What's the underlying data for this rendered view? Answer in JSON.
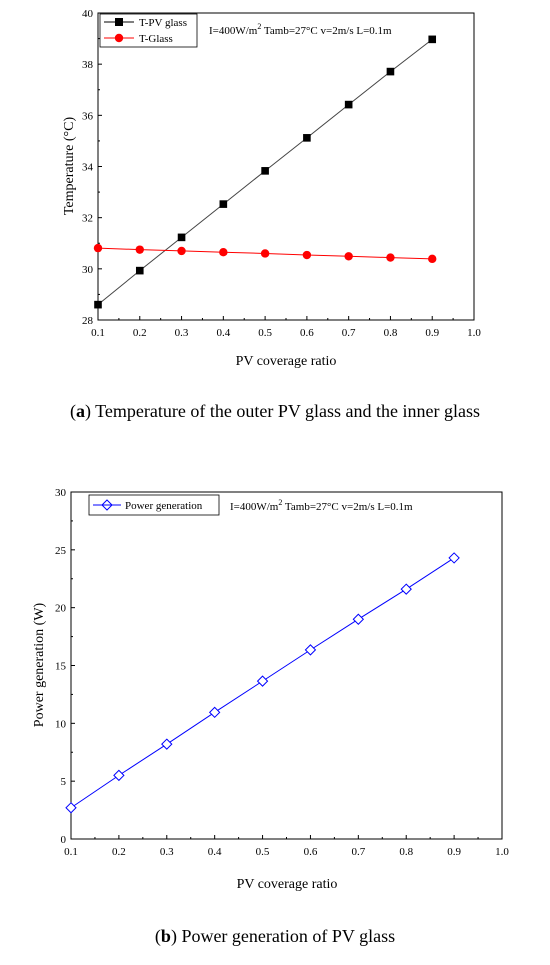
{
  "chart_data": [
    {
      "type": "line",
      "xlabel": "PV coverage ratio",
      "ylabel": "Temperature (°C)",
      "xlim": [
        0.1,
        1.0
      ],
      "ylim": [
        28,
        40
      ],
      "xticks": [
        "0.1",
        "0.2",
        "0.3",
        "0.4",
        "0.5",
        "0.6",
        "0.7",
        "0.8",
        "0.9",
        "1.0"
      ],
      "yticks": [
        "28",
        "30",
        "32",
        "34",
        "36",
        "38",
        "40"
      ],
      "annotation": {
        "main": "I=400W/m",
        "sup": "2",
        "rest": " Tamb=27°C v=2m/s L=0.1m"
      },
      "legend_position": "top-left",
      "x": [
        0.1,
        0.2,
        0.3,
        0.4,
        0.5,
        0.6,
        0.7,
        0.8,
        0.9
      ],
      "series": [
        {
          "name": "T-PV glass",
          "color": "#000000",
          "line_color": "#444444",
          "marker": "square",
          "values": [
            28.6,
            29.93,
            31.23,
            32.53,
            33.83,
            35.12,
            36.42,
            37.71,
            38.97
          ]
        },
        {
          "name": "T-Glass",
          "color": "#ff0000",
          "line_color": "#ff0000",
          "marker": "circle",
          "values": [
            30.81,
            30.75,
            30.7,
            30.65,
            30.6,
            30.54,
            30.49,
            30.44,
            30.39
          ]
        }
      ],
      "caption": {
        "letter": "a",
        "text": "Temperature of the outer PV glass and the inner glass"
      }
    },
    {
      "type": "line",
      "xlabel": "PV coverage ratio",
      "ylabel": "Power generation (W)",
      "xlim": [
        0.1,
        1.0
      ],
      "ylim": [
        0,
        30
      ],
      "xticks": [
        "0.1",
        "0.2",
        "0.3",
        "0.4",
        "0.5",
        "0.6",
        "0.7",
        "0.8",
        "0.9",
        "1.0"
      ],
      "yticks": [
        "0",
        "5",
        "10",
        "15",
        "20",
        "25",
        "30"
      ],
      "annotation": {
        "main": "I=400W/m",
        "sup": "2",
        "rest": " Tamb=27°C v=2m/s L=0.1m"
      },
      "legend_position": "top-left",
      "x": [
        0.1,
        0.2,
        0.3,
        0.4,
        0.5,
        0.6,
        0.7,
        0.8,
        0.9
      ],
      "series": [
        {
          "name": "Power generation",
          "color": "#0000ff",
          "line_color": "#0000ff",
          "marker": "diamond",
          "values": [
            2.7,
            5.5,
            8.2,
            10.95,
            13.65,
            16.35,
            19.0,
            21.6,
            24.3
          ]
        }
      ],
      "caption": {
        "letter": "b",
        "text": "Power generation of PV glass"
      }
    }
  ]
}
